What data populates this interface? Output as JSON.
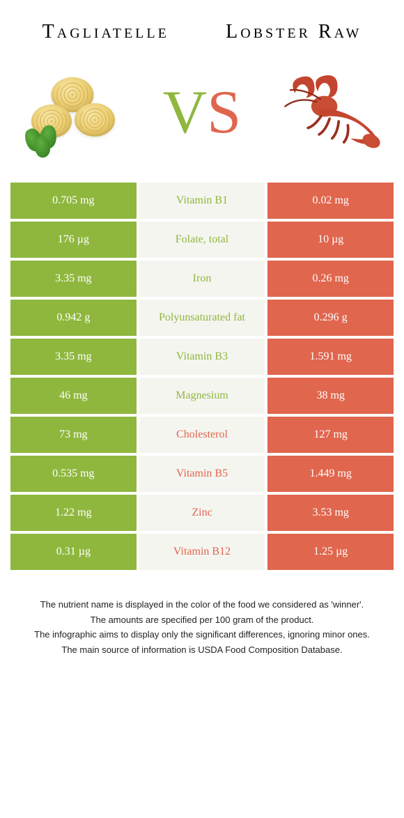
{
  "colors": {
    "left": "#8fb73e",
    "right": "#e0664e",
    "mid_bg": "#f5f5f0"
  },
  "header": {
    "left_title": "Tagliatelle",
    "right_title": "Lobster Raw"
  },
  "vs": {
    "v": "V",
    "s": "S"
  },
  "rows": [
    {
      "left": "0.705 mg",
      "label": "Vitamin B1",
      "right": "0.02 mg",
      "winner": "left"
    },
    {
      "left": "176 µg",
      "label": "Folate, total",
      "right": "10 µg",
      "winner": "left"
    },
    {
      "left": "3.35 mg",
      "label": "Iron",
      "right": "0.26 mg",
      "winner": "left"
    },
    {
      "left": "0.942 g",
      "label": "Polyunsaturated fat",
      "right": "0.296 g",
      "winner": "left"
    },
    {
      "left": "3.35 mg",
      "label": "Vitamin B3",
      "right": "1.591 mg",
      "winner": "left"
    },
    {
      "left": "46 mg",
      "label": "Magnesium",
      "right": "38 mg",
      "winner": "left"
    },
    {
      "left": "73 mg",
      "label": "Cholesterol",
      "right": "127 mg",
      "winner": "right"
    },
    {
      "left": "0.535 mg",
      "label": "Vitamin B5",
      "right": "1.449 mg",
      "winner": "right"
    },
    {
      "left": "1.22 mg",
      "label": "Zinc",
      "right": "3.53 mg",
      "winner": "right"
    },
    {
      "left": "0.31 µg",
      "label": "Vitamin B12",
      "right": "1.25 µg",
      "winner": "right"
    }
  ],
  "footnotes": [
    "The nutrient name is displayed in the color of the food we considered as 'winner'.",
    "The amounts are specified per 100 gram of the product.",
    "The infographic aims to display only the significant differences, ignoring minor ones.",
    "The main source of information is USDA Food Composition Database."
  ]
}
